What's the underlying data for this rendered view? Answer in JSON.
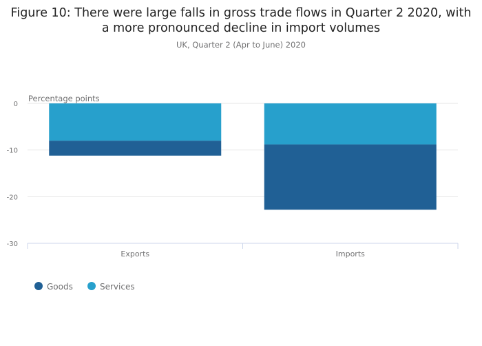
{
  "title_lines": [
    "Figure 10: There were large falls in gross trade flows in Quarter 2 2020, with",
    "a more pronounced decline in import volumes"
  ],
  "subtitle": "UK, Quarter 2 (Apr to June) 2020",
  "chart_data": {
    "type": "bar",
    "stacked": true,
    "title": "Figure 10: There were large falls in gross trade flows in Quarter 2 2020, with a more pronounced decline in import volumes",
    "subtitle": "UK, Quarter 2 (Apr to June) 2020",
    "ylabel": "Percentage points",
    "xlabel": "",
    "categories": [
      "Exports",
      "Imports"
    ],
    "ylim": [
      -30,
      0
    ],
    "yticks": [
      0,
      -10,
      -20,
      -30
    ],
    "grid": true,
    "legend_position": "bottom-left",
    "series": [
      {
        "name": "Goods",
        "color": "#206095",
        "values": [
          -3.2,
          -14.0
        ]
      },
      {
        "name": "Services",
        "color": "#27a0cc",
        "values": [
          -8.0,
          -8.8
        ]
      }
    ]
  }
}
